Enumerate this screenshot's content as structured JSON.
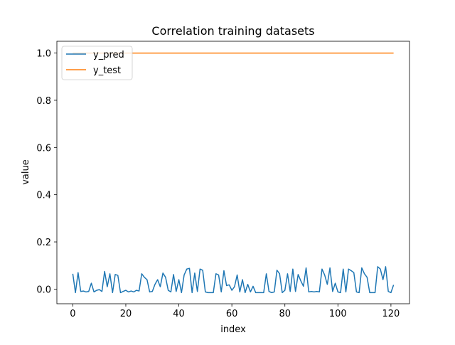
{
  "chart_data": {
    "type": "line",
    "title": "Correlation training datasets",
    "xlabel": "index",
    "ylabel": "value",
    "xlim": [
      -6,
      127
    ],
    "ylim": [
      -0.062,
      1.05
    ],
    "x_ticks": [
      0,
      20,
      40,
      60,
      80,
      100,
      120
    ],
    "y_ticks": [
      0.0,
      0.2,
      0.4,
      0.6,
      0.8,
      1.0
    ],
    "y_tick_labels": [
      "0.0",
      "0.2",
      "0.4",
      "0.6",
      "0.8",
      "1.0"
    ],
    "grid": false,
    "legend_position": "top-left",
    "colors": {
      "y_pred": "#1f77b4",
      "y_test": "#ff7f0e"
    },
    "series": [
      {
        "name": "y_pred",
        "values": [
          0.065,
          -0.015,
          0.07,
          -0.01,
          -0.008,
          -0.012,
          -0.01,
          0.025,
          -0.012,
          -0.005,
          -0.002,
          -0.01,
          0.075,
          0.01,
          0.065,
          -0.015,
          0.062,
          0.058,
          -0.015,
          -0.01,
          -0.005,
          -0.012,
          -0.008,
          -0.012,
          -0.005,
          -0.008,
          0.065,
          0.05,
          0.04,
          -0.012,
          -0.01,
          0.02,
          0.04,
          0.01,
          0.068,
          0.05,
          -0.005,
          -0.012,
          0.062,
          -0.01,
          0.04,
          -0.015,
          0.06,
          0.085,
          0.088,
          -0.015,
          0.068,
          -0.01,
          0.085,
          0.08,
          -0.012,
          -0.015,
          -0.015,
          -0.015,
          0.065,
          0.06,
          -0.012,
          0.078,
          0.015,
          0.018,
          -0.005,
          0.01,
          0.06,
          -0.012,
          0.04,
          -0.015,
          0.02,
          -0.012,
          0.012,
          -0.015,
          -0.015,
          -0.015,
          -0.015,
          0.065,
          -0.01,
          -0.015,
          -0.012,
          0.08,
          0.065,
          -0.015,
          -0.005,
          0.065,
          -0.01,
          0.085,
          -0.01,
          0.062,
          0.035,
          0.012,
          0.09,
          -0.012,
          -0.01,
          -0.012,
          -0.01,
          -0.012,
          0.085,
          0.06,
          0.02,
          0.09,
          -0.01,
          0.025,
          -0.012,
          -0.015,
          0.085,
          -0.012,
          0.085,
          0.078,
          0.07,
          -0.012,
          -0.015,
          0.09,
          0.065,
          0.05,
          -0.015,
          -0.015,
          -0.015,
          0.095,
          0.085,
          0.04,
          0.095,
          -0.01,
          -0.015,
          0.018
        ]
      },
      {
        "name": "y_test",
        "values": [
          1,
          1,
          1,
          1,
          1,
          1,
          1,
          1,
          1,
          1,
          1,
          1,
          1,
          1,
          1,
          1,
          1,
          1,
          1,
          1,
          1,
          1,
          1,
          1,
          1,
          1,
          1,
          1,
          1,
          1,
          1,
          1,
          1,
          1,
          1,
          1,
          1,
          1,
          1,
          1,
          1,
          1,
          1,
          1,
          1,
          1,
          1,
          1,
          1,
          1,
          1,
          1,
          1,
          1,
          1,
          1,
          1,
          1,
          1,
          1,
          1,
          1,
          1,
          1,
          1,
          1,
          1,
          1,
          1,
          1,
          1,
          1,
          1,
          1,
          1,
          1,
          1,
          1,
          1,
          1,
          1,
          1,
          1,
          1,
          1,
          1,
          1,
          1,
          1,
          1,
          1,
          1,
          1,
          1,
          1,
          1,
          1,
          1,
          1,
          1,
          1,
          1,
          1,
          1,
          1,
          1,
          1,
          1,
          1,
          1,
          1,
          1,
          1,
          1,
          1,
          1,
          1,
          1,
          1,
          1,
          1,
          1
        ]
      }
    ]
  }
}
